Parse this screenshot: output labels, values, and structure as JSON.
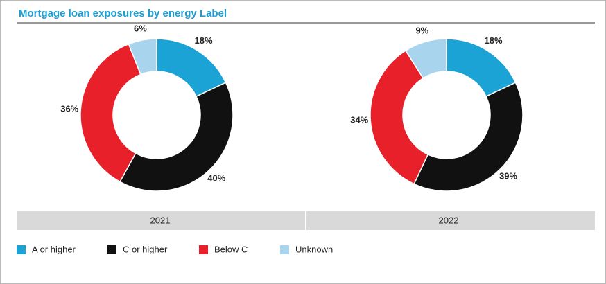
{
  "title": "Mortgage loan exposures by energy Label",
  "chart_data": [
    {
      "type": "pie",
      "donut": true,
      "title": "2021",
      "categories": [
        "A or higher",
        "C or higher",
        "Below C",
        "Unknown"
      ],
      "values": [
        18,
        40,
        36,
        6
      ],
      "value_labels": [
        "18%",
        "40%",
        "36%",
        "6%"
      ],
      "colors": [
        "#1ba3d6",
        "#111111",
        "#e8202a",
        "#a9d4ee"
      ]
    },
    {
      "type": "pie",
      "donut": true,
      "title": "2022",
      "categories": [
        "A or higher",
        "C or higher",
        "Below C",
        "Unknown"
      ],
      "values": [
        18,
        39,
        34,
        9
      ],
      "value_labels": [
        "18%",
        "39%",
        "34%",
        "9%"
      ],
      "colors": [
        "#1ba3d6",
        "#111111",
        "#e8202a",
        "#a9d4ee"
      ]
    }
  ]
}
